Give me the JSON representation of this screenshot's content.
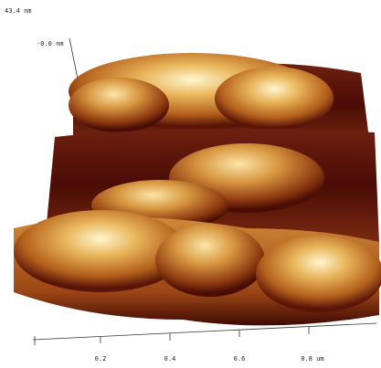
{
  "axis": {
    "z_max": "43.4 nm",
    "z_min": "-0.0 nm",
    "x_ticks": [
      "0.2",
      "0.4",
      "0.6",
      "0.8 um"
    ]
  }
}
